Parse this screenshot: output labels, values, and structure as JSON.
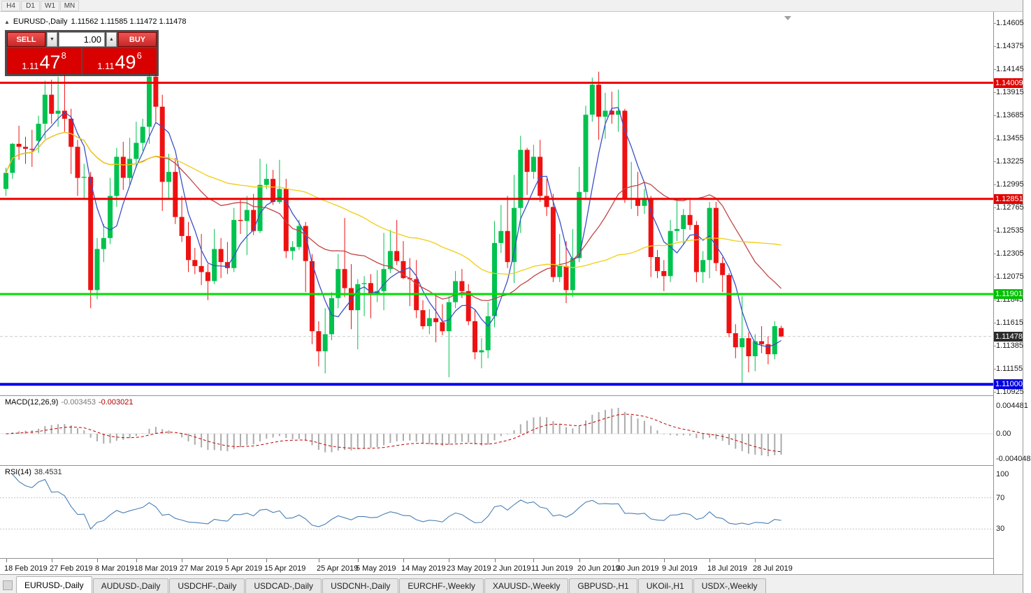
{
  "toolbar": {
    "timeframes": [
      "H4",
      "D1",
      "W1",
      "MN"
    ]
  },
  "header": {
    "collapse_icon": "▲",
    "symbol_title": "EURUSD-,Daily",
    "ohlc": "1.11562 1.11585 1.11472 1.11478"
  },
  "trade_panel": {
    "sell_label": "SELL",
    "buy_label": "BUY",
    "volume": "1.00",
    "volume_down_icon": "▼",
    "volume_up_icon": "▲",
    "sell_price": {
      "base": "1.11",
      "big": "47",
      "sup": "8"
    },
    "buy_price": {
      "base": "1.11",
      "big": "49",
      "sup": "6"
    }
  },
  "chart_data": {
    "type": "candlestick",
    "symbol": "EURUSD-",
    "timeframe": "Daily",
    "up_color": "#00c24e",
    "down_color": "#ee1111",
    "current_price": 1.11478,
    "price_axis_labels": [
      "1.14605",
      "1.14375",
      "1.14145",
      "1.13915",
      "1.13685",
      "1.13455",
      "1.13225",
      "1.12995",
      "1.12765",
      "1.12535",
      "1.12305",
      "1.12075",
      "1.11845",
      "1.11615",
      "1.11385",
      "1.11155",
      "1.10925"
    ],
    "price_tags": [
      {
        "text": "1.14009",
        "price": 1.14009,
        "bg": "#e00000"
      },
      {
        "text": "1.12851",
        "price": 1.12851,
        "bg": "#e00000"
      },
      {
        "text": "1.11901",
        "price": 1.11901,
        "bg": "#00c000"
      },
      {
        "text": "1.11478",
        "price": 1.11478,
        "bg": "#2b2b2b"
      },
      {
        "text": "1.11000",
        "price": 1.11,
        "bg": "#0000e0"
      }
    ],
    "hlines": [
      {
        "price": 1.14009,
        "color": "#ee0000",
        "width": 3
      },
      {
        "price": 1.12851,
        "color": "#ee0000",
        "width": 3
      },
      {
        "price": 1.11901,
        "color": "#00dd00",
        "width": 3
      },
      {
        "price": 1.11,
        "color": "#0000ee",
        "width": 4
      }
    ],
    "ma_lines": [
      {
        "period": 5,
        "color": "#3a50c8"
      },
      {
        "period": 21,
        "color": "#c24545"
      },
      {
        "period": 50,
        "color": "#f0cd12"
      }
    ],
    "candles": [
      [
        1.1295,
        1.1316,
        1.1288,
        1.1311
      ],
      [
        1.1311,
        1.1341,
        1.1305,
        1.134
      ],
      [
        1.134,
        1.1358,
        1.1324,
        1.1337
      ],
      [
        1.1337,
        1.1347,
        1.132,
        1.1335
      ],
      [
        1.1335,
        1.1354,
        1.1317,
        1.1334
      ],
      [
        1.1343,
        1.1368,
        1.1331,
        1.136
      ],
      [
        1.136,
        1.1403,
        1.1345,
        1.1389
      ],
      [
        1.1389,
        1.1404,
        1.136,
        1.137
      ],
      [
        1.137,
        1.1407,
        1.1357,
        1.1373
      ],
      [
        1.1373,
        1.1409,
        1.1352,
        1.1365
      ],
      [
        1.1365,
        1.1375,
        1.131,
        1.1337
      ],
      [
        1.1337,
        1.1344,
        1.1288,
        1.1306
      ],
      [
        1.1306,
        1.132,
        1.1285,
        1.1307
      ],
      [
        1.1307,
        1.1312,
        1.1176,
        1.1194
      ],
      [
        1.1194,
        1.1246,
        1.1185,
        1.1235
      ],
      [
        1.1235,
        1.126,
        1.1222,
        1.1246
      ],
      [
        1.1246,
        1.1306,
        1.124,
        1.1288
      ],
      [
        1.1288,
        1.1336,
        1.1277,
        1.1327
      ],
      [
        1.1327,
        1.1342,
        1.1294,
        1.1306
      ],
      [
        1.1306,
        1.1346,
        1.1299,
        1.1325
      ],
      [
        1.1325,
        1.1362,
        1.1316,
        1.1341
      ],
      [
        1.1341,
        1.1365,
        1.1333,
        1.1357
      ],
      [
        1.1357,
        1.1414,
        1.134,
        1.1407
      ],
      [
        1.1407,
        1.1413,
        1.1362,
        1.1377
      ],
      [
        1.1377,
        1.1389,
        1.1273,
        1.1302
      ],
      [
        1.1302,
        1.133,
        1.1286,
        1.1312
      ],
      [
        1.1312,
        1.1326,
        1.126,
        1.1267
      ],
      [
        1.1267,
        1.1288,
        1.1242,
        1.1248
      ],
      [
        1.1248,
        1.1262,
        1.1212,
        1.1224
      ],
      [
        1.1224,
        1.1236,
        1.121,
        1.1218
      ],
      [
        1.1218,
        1.125,
        1.1199,
        1.1212
      ],
      [
        1.1212,
        1.122,
        1.1184,
        1.1203
      ],
      [
        1.1203,
        1.1255,
        1.12,
        1.1235
      ],
      [
        1.1235,
        1.1246,
        1.1206,
        1.1222
      ],
      [
        1.1222,
        1.1242,
        1.121,
        1.1216
      ],
      [
        1.1216,
        1.1276,
        1.1212,
        1.1264
      ],
      [
        1.1264,
        1.1285,
        1.125,
        1.1263
      ],
      [
        1.1263,
        1.1288,
        1.1229,
        1.1274
      ],
      [
        1.1274,
        1.129,
        1.1249,
        1.1253
      ],
      [
        1.1253,
        1.1325,
        1.1251,
        1.1299
      ],
      [
        1.1299,
        1.132,
        1.1295,
        1.1305
      ],
      [
        1.1305,
        1.1314,
        1.1279,
        1.1282
      ],
      [
        1.1282,
        1.1324,
        1.128,
        1.1295
      ],
      [
        1.1295,
        1.1305,
        1.1226,
        1.1233
      ],
      [
        1.1233,
        1.1243,
        1.1224,
        1.1237
      ],
      [
        1.1237,
        1.1264,
        1.1234,
        1.1258
      ],
      [
        1.1258,
        1.1262,
        1.1192,
        1.1223
      ],
      [
        1.1223,
        1.123,
        1.114,
        1.1153
      ],
      [
        1.1153,
        1.1163,
        1.1118,
        1.1133
      ],
      [
        1.1133,
        1.1176,
        1.1111,
        1.115
      ],
      [
        1.115,
        1.1192,
        1.1144,
        1.1186
      ],
      [
        1.1186,
        1.123,
        1.1176,
        1.1215
      ],
      [
        1.1215,
        1.1266,
        1.1187,
        1.1196
      ],
      [
        1.1196,
        1.122,
        1.1155,
        1.1174
      ],
      [
        1.1174,
        1.1205,
        1.1135,
        1.12
      ],
      [
        1.12,
        1.1208,
        1.1168,
        1.1201
      ],
      [
        1.1201,
        1.121,
        1.1166,
        1.119
      ],
      [
        1.119,
        1.1214,
        1.1182,
        1.1193
      ],
      [
        1.1193,
        1.1251,
        1.1174,
        1.1215
      ],
      [
        1.1215,
        1.1254,
        1.1211,
        1.1233
      ],
      [
        1.1233,
        1.1264,
        1.1219,
        1.1223
      ],
      [
        1.1223,
        1.1243,
        1.1205,
        1.1206
      ],
      [
        1.1206,
        1.1226,
        1.1178,
        1.1205
      ],
      [
        1.1205,
        1.1224,
        1.1166,
        1.1174
      ],
      [
        1.1174,
        1.1184,
        1.1155,
        1.1158
      ],
      [
        1.1158,
        1.1175,
        1.115,
        1.1166
      ],
      [
        1.1166,
        1.1188,
        1.1142,
        1.1162
      ],
      [
        1.1162,
        1.118,
        1.1149,
        1.1153
      ],
      [
        1.1153,
        1.1188,
        1.1107,
        1.1182
      ],
      [
        1.1182,
        1.1213,
        1.1176,
        1.1203
      ],
      [
        1.1203,
        1.1215,
        1.1186,
        1.1193
      ],
      [
        1.1193,
        1.12,
        1.1159,
        1.1163
      ],
      [
        1.1163,
        1.1174,
        1.1125,
        1.1132
      ],
      [
        1.1132,
        1.1146,
        1.1116,
        1.1134
      ],
      [
        1.1134,
        1.1182,
        1.1126,
        1.1168
      ],
      [
        1.1168,
        1.1263,
        1.1157,
        1.1241
      ],
      [
        1.1241,
        1.1279,
        1.1231,
        1.1253
      ],
      [
        1.1253,
        1.1288,
        1.1216,
        1.1222
      ],
      [
        1.1222,
        1.1309,
        1.1201,
        1.1276
      ],
      [
        1.1276,
        1.1348,
        1.1251,
        1.1334
      ],
      [
        1.1334,
        1.1336,
        1.1289,
        1.1312
      ],
      [
        1.1312,
        1.1339,
        1.1305,
        1.1327
      ],
      [
        1.1327,
        1.1344,
        1.1282,
        1.1288
      ],
      [
        1.1288,
        1.1305,
        1.1268,
        1.1277
      ],
      [
        1.1277,
        1.129,
        1.1202,
        1.1207
      ],
      [
        1.1207,
        1.125,
        1.1202,
        1.1218
      ],
      [
        1.1218,
        1.1243,
        1.1181,
        1.1194
      ],
      [
        1.1194,
        1.1255,
        1.1187,
        1.1226
      ],
      [
        1.1226,
        1.1317,
        1.1222,
        1.1292
      ],
      [
        1.1292,
        1.1378,
        1.1285,
        1.1369
      ],
      [
        1.1369,
        1.1406,
        1.1362,
        1.1399
      ],
      [
        1.1399,
        1.1412,
        1.1344,
        1.1367
      ],
      [
        1.1367,
        1.1391,
        1.1345,
        1.1373
      ],
      [
        1.1373,
        1.1392,
        1.136,
        1.1369
      ],
      [
        1.1369,
        1.1394,
        1.1352,
        1.1373
      ],
      [
        1.1373,
        1.1375,
        1.1281,
        1.1285
      ],
      [
        1.1285,
        1.1322,
        1.1275,
        1.1285
      ],
      [
        1.1285,
        1.1312,
        1.1268,
        1.1278
      ],
      [
        1.1278,
        1.1295,
        1.127,
        1.1285
      ],
      [
        1.1285,
        1.1288,
        1.1207,
        1.1227
      ],
      [
        1.1227,
        1.1234,
        1.1206,
        1.1213
      ],
      [
        1.1213,
        1.1224,
        1.1193,
        1.1208
      ],
      [
        1.1208,
        1.1264,
        1.1202,
        1.1253
      ],
      [
        1.1253,
        1.1286,
        1.1243,
        1.1255
      ],
      [
        1.1255,
        1.1275,
        1.1239,
        1.1269
      ],
      [
        1.1269,
        1.1285,
        1.1254,
        1.1259
      ],
      [
        1.1259,
        1.1263,
        1.1202,
        1.1212
      ],
      [
        1.1212,
        1.1233,
        1.1201,
        1.1224
      ],
      [
        1.1224,
        1.1282,
        1.1206,
        1.1276
      ],
      [
        1.1276,
        1.1282,
        1.1213,
        1.1221
      ],
      [
        1.1221,
        1.1227,
        1.1192,
        1.1209
      ],
      [
        1.1209,
        1.1211,
        1.1147,
        1.1151
      ],
      [
        1.1151,
        1.116,
        1.1126,
        1.1137
      ],
      [
        1.1137,
        1.1188,
        1.1101,
        1.1146
      ],
      [
        1.1146,
        1.1152,
        1.1112,
        1.1128
      ],
      [
        1.1128,
        1.115,
        1.1113,
        1.1143
      ],
      [
        1.1143,
        1.1158,
        1.1131,
        1.114
      ],
      [
        1.114,
        1.1148,
        1.112,
        1.113
      ],
      [
        1.113,
        1.1163,
        1.1125,
        1.1158
      ],
      [
        1.11562,
        1.11585,
        1.11472,
        1.11478
      ]
    ],
    "date_labels": [
      {
        "text": "18 Feb 2019",
        "index": 0
      },
      {
        "text": "27 Feb 2019",
        "index": 7
      },
      {
        "text": "8 Mar 2019",
        "index": 14
      },
      {
        "text": "18 Mar 2019",
        "index": 20
      },
      {
        "text": "27 Mar 2019",
        "index": 27
      },
      {
        "text": "5 Apr 2019",
        "index": 34
      },
      {
        "text": "15 Apr 2019",
        "index": 40
      },
      {
        "text": "25 Apr 2019",
        "index": 48
      },
      {
        "text": "5 May 2019",
        "index": 54
      },
      {
        "text": "14 May 2019",
        "index": 61
      },
      {
        "text": "23 May 2019",
        "index": 68
      },
      {
        "text": "2 Jun 2019",
        "index": 75
      },
      {
        "text": "11 Jun 2019",
        "index": 81
      },
      {
        "text": "20 Jun 2019",
        "index": 88
      },
      {
        "text": "30 Jun 2019",
        "index": 94
      },
      {
        "text": "9 Jul 2019",
        "index": 101
      },
      {
        "text": "18 Jul 2019",
        "index": 108
      },
      {
        "text": "28 Jul 2019",
        "index": 115
      }
    ]
  },
  "macd_panel": {
    "label": "MACD(12,26,9)",
    "main_value": "-0.003453",
    "signal_value": "-0.003021",
    "axis_labels": [
      "0.004481",
      "0.00",
      "-0.004048"
    ],
    "histogram_color": "#ababab",
    "signal_color": "#c00000"
  },
  "rsi_panel": {
    "label": "RSI(14)",
    "value": "38.4531",
    "axis_labels": [
      "100",
      "70",
      "30"
    ],
    "levels": [
      70,
      30
    ],
    "line_color": "#4a7fb5"
  },
  "tabs": [
    {
      "label": "EURUSD-,Daily",
      "active": true
    },
    {
      "label": "AUDUSD-,Daily",
      "active": false
    },
    {
      "label": "USDCHF-,Daily",
      "active": false
    },
    {
      "label": "USDCAD-,Daily",
      "active": false
    },
    {
      "label": "USDCNH-,Daily",
      "active": false
    },
    {
      "label": "EURCHF-,Weekly",
      "active": false
    },
    {
      "label": "XAUUSD-,Weekly",
      "active": false
    },
    {
      "label": "GBPUSD-,H1",
      "active": false
    },
    {
      "label": "UKOil-,H1",
      "active": false
    },
    {
      "label": "USDX-,Weekly",
      "active": false
    }
  ]
}
